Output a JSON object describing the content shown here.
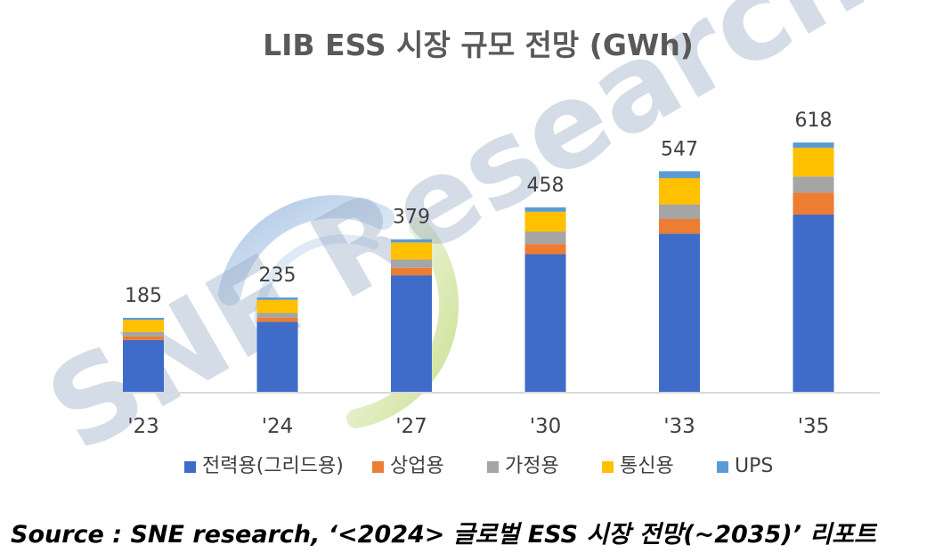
{
  "colors": {
    "grid": "#3f6cc8",
    "commercial": "#ed7d31",
    "residential": "#a5a5a5",
    "telecom": "#ffc000",
    "ups": "#5b9bd5",
    "axis": "#d9d9d9"
  },
  "watermark": {
    "text": "SNE Research"
  },
  "source": "Source : SNE research, ‘<2024> 글로벌 ESS 시장 전망(~2035)’ 리포트",
  "chart_data": {
    "type": "bar",
    "stacked": true,
    "title": "LIB ESS 시장 규모 전망 (GWh)",
    "categories": [
      "'23",
      "'24",
      "'27",
      "'30",
      "'33",
      "'35"
    ],
    "totals": [
      185,
      235,
      379,
      458,
      547,
      618
    ],
    "series": [
      {
        "name": "전력용(그리드용)",
        "color": "#3f6cc8",
        "values": [
          130,
          175,
          290,
          342,
          393,
          440
        ]
      },
      {
        "name": "상업용",
        "color": "#ed7d31",
        "values": [
          9,
          10,
          18,
          25,
          36,
          54
        ]
      },
      {
        "name": "가정용",
        "color": "#a5a5a5",
        "values": [
          11,
          12,
          21,
          31,
          36,
          40
        ]
      },
      {
        "name": "통신용",
        "color": "#ffc000",
        "values": [
          30,
          32,
          42,
          49,
          65,
          71
        ]
      },
      {
        "name": "UPS",
        "color": "#5b9bd5",
        "values": [
          5,
          6,
          8,
          11,
          17,
          13
        ]
      }
    ],
    "ylim": [
      0,
      700
    ],
    "legend_position": "bottom",
    "grid": false
  }
}
